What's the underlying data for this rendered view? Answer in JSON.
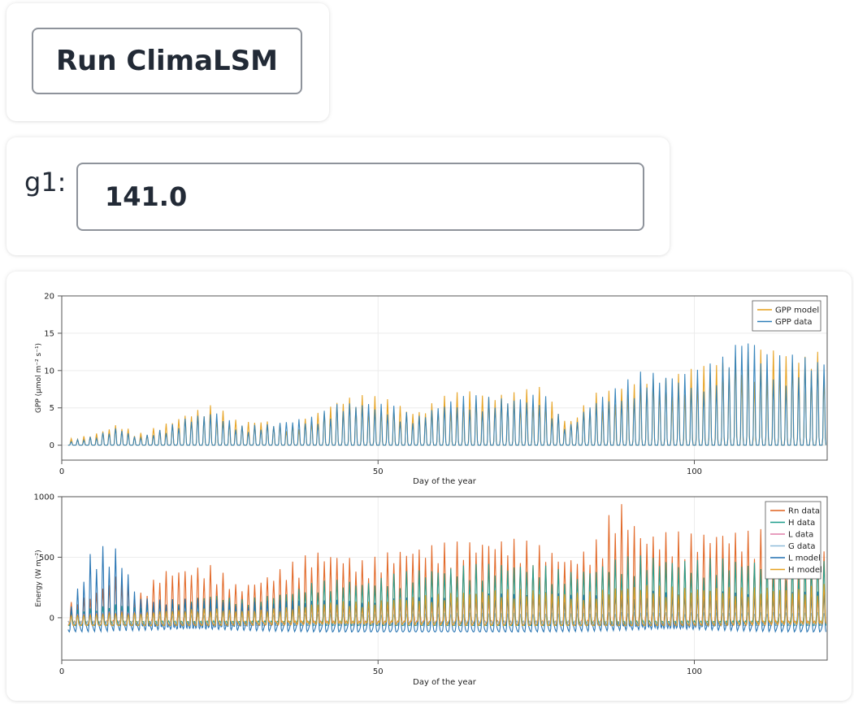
{
  "run_button": {
    "label": "Run ClimaLSM"
  },
  "g1": {
    "label": "g1:",
    "value": "141.0"
  },
  "chart_data": [
    {
      "type": "line",
      "xlabel": "Day of the year",
      "ylabel": "GPP (μmol m⁻² s⁻¹)",
      "xlim": [
        0,
        121
      ],
      "ylim": [
        -2,
        20
      ],
      "xticks": [
        0,
        50,
        100
      ],
      "yticks": [
        0,
        5,
        10,
        15,
        20
      ],
      "legend_position": "top-right",
      "series": [
        {
          "name": "GPP model",
          "color": "#e6a01c",
          "x": [
            1,
            5,
            9,
            12,
            16,
            20,
            24,
            28,
            32,
            36,
            40,
            44,
            48,
            52,
            56,
            60,
            64,
            68,
            72,
            76,
            80,
            84,
            88,
            92,
            96,
            100,
            104,
            108,
            112,
            116,
            120
          ],
          "values": [
            0.8,
            1.5,
            3.0,
            1.5,
            2.8,
            4.5,
            5.5,
            3.2,
            3.5,
            2.5,
            4.2,
            6.5,
            6.8,
            6.2,
            4.5,
            6.5,
            7.5,
            7.0,
            7.2,
            8.0,
            3.0,
            7.0,
            7.5,
            9.5,
            9.0,
            10.5,
            12.0,
            12.5,
            13.0,
            12.5,
            12.8
          ]
        },
        {
          "name": "GPP data",
          "color": "#2e7fb8",
          "x": [
            1,
            5,
            9,
            12,
            16,
            20,
            24,
            28,
            32,
            36,
            40,
            44,
            48,
            52,
            56,
            60,
            64,
            68,
            72,
            76,
            80,
            84,
            88,
            92,
            96,
            100,
            104,
            108,
            112,
            116,
            120
          ],
          "values": [
            0.5,
            1.2,
            2.5,
            1.0,
            2.2,
            3.8,
            4.8,
            2.6,
            2.8,
            3.5,
            3.9,
            5.8,
            6.0,
            5.5,
            3.8,
            5.8,
            6.8,
            6.5,
            6.6,
            7.2,
            2.4,
            6.2,
            8.0,
            10.2,
            9.8,
            10.0,
            11.5,
            15.8,
            12.0,
            12.2,
            12.0
          ]
        }
      ]
    },
    {
      "type": "line",
      "xlabel": "Day of the year",
      "ylabel": "Energy (W m⁻²)",
      "xlim": [
        0,
        121
      ],
      "ylim": [
        -350,
        1000
      ],
      "xticks": [
        0,
        50,
        100
      ],
      "yticks": [
        0,
        500,
        1000
      ],
      "legend_position": "top-right",
      "series": [
        {
          "name": "Rn data",
          "color": "#e0621f",
          "x": [
            1,
            5,
            9,
            12,
            16,
            20,
            24,
            28,
            32,
            36,
            40,
            44,
            48,
            52,
            56,
            60,
            64,
            68,
            72,
            76,
            80,
            84,
            88,
            92,
            96,
            100,
            104,
            108,
            112,
            116,
            120
          ],
          "values": [
            120,
            200,
            380,
            180,
            400,
            420,
            440,
            260,
            340,
            450,
            560,
            540,
            470,
            560,
            600,
            620,
            640,
            660,
            660,
            600,
            500,
            600,
            1000,
            700,
            720,
            700,
            740,
            720,
            740,
            700,
            760
          ]
        },
        {
          "name": "H data",
          "color": "#1f9e8c",
          "x": [
            1,
            5,
            9,
            12,
            16,
            20,
            24,
            28,
            32,
            36,
            40,
            44,
            48,
            52,
            56,
            60,
            64,
            68,
            72,
            76,
            80,
            84,
            88,
            92,
            96,
            100,
            104,
            108,
            112,
            116,
            120
          ],
          "values": [
            60,
            80,
            120,
            90,
            150,
            160,
            200,
            150,
            180,
            220,
            300,
            320,
            300,
            360,
            400,
            420,
            440,
            450,
            460,
            440,
            380,
            420,
            500,
            520,
            500,
            480,
            500,
            480,
            500,
            460,
            520
          ]
        },
        {
          "name": "L data",
          "color": "#e07fa8",
          "x": [
            1,
            5,
            9,
            12,
            16,
            20,
            24,
            28,
            32,
            36,
            40,
            44,
            48,
            52,
            56,
            60,
            64,
            68,
            72,
            76,
            80,
            84,
            88,
            92,
            96,
            100,
            104,
            108,
            112,
            116,
            120
          ],
          "values": [
            30,
            40,
            60,
            50,
            70,
            80,
            90,
            80,
            90,
            100,
            110,
            120,
            110,
            130,
            140,
            150,
            160,
            170,
            180,
            190,
            170,
            180,
            200,
            210,
            200,
            200,
            210,
            200,
            210,
            200,
            220
          ]
        },
        {
          "name": "G data",
          "color": "#8fbcd9",
          "x": [
            1,
            5,
            9,
            12,
            16,
            20,
            24,
            28,
            32,
            36,
            40,
            44,
            48,
            52,
            56,
            60,
            64,
            68,
            72,
            76,
            80,
            84,
            88,
            92,
            96,
            100,
            104,
            108,
            112,
            116,
            120
          ],
          "values": [
            10,
            15,
            20,
            18,
            22,
            25,
            28,
            26,
            28,
            30,
            32,
            34,
            32,
            36,
            38,
            40,
            42,
            40,
            42,
            44,
            40,
            42,
            46,
            48,
            46,
            44,
            46,
            44,
            46,
            44,
            48
          ]
        },
        {
          "name": "L model",
          "color": "#1f6fb0",
          "x": [
            1,
            5,
            9,
            12,
            16,
            20,
            24,
            28,
            32,
            36,
            40,
            44,
            48,
            52,
            56,
            60,
            64,
            68,
            72,
            76,
            80,
            84,
            88,
            92,
            96,
            100,
            104,
            108,
            112,
            116,
            120
          ],
          "values": [
            40,
            600,
            580,
            180,
            150,
            160,
            170,
            120,
            140,
            160,
            140,
            150,
            130,
            160,
            170,
            180,
            190,
            200,
            210,
            220,
            190,
            200,
            220,
            230,
            220,
            210,
            220,
            210,
            220,
            210,
            230
          ]
        },
        {
          "name": "H model",
          "color": "#e6a01c",
          "x": [
            1,
            5,
            9,
            12,
            16,
            20,
            24,
            28,
            32,
            36,
            40,
            44,
            48,
            52,
            56,
            60,
            64,
            68,
            72,
            76,
            80,
            84,
            88,
            92,
            96,
            100,
            104,
            108,
            112,
            116,
            120
          ],
          "values": [
            20,
            30,
            50,
            40,
            60,
            70,
            80,
            60,
            70,
            90,
            120,
            140,
            130,
            160,
            180,
            200,
            220,
            230,
            240,
            230,
            200,
            220,
            260,
            280,
            260,
            250,
            260,
            250,
            260,
            240,
            280
          ]
        }
      ]
    }
  ]
}
